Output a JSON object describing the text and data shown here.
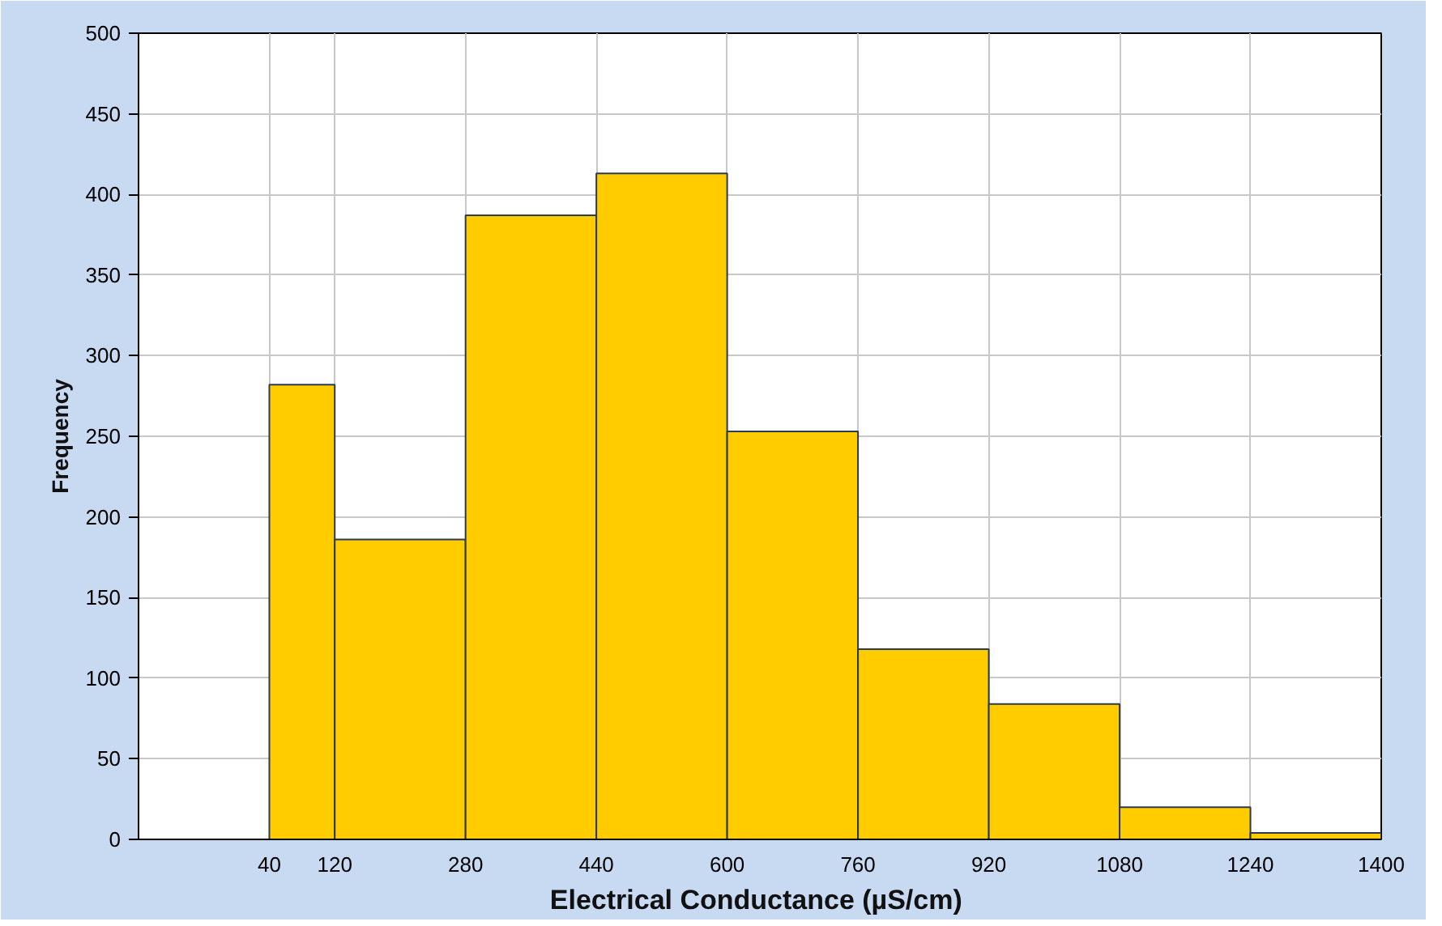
{
  "chart_data": {
    "type": "histogram",
    "xlabel": "Electrical Conductance  (µS/cm)",
    "ylabel": "Frequency",
    "bins": [
      40,
      120,
      280,
      440,
      600,
      760,
      920,
      1080,
      1240,
      1400
    ],
    "values": [
      282,
      186,
      387,
      413,
      253,
      118,
      84,
      20,
      4
    ],
    "color": "#ffcc00",
    "xlim": [
      -120,
      1400
    ],
    "xticks": [
      40,
      120,
      280,
      440,
      600,
      760,
      920,
      1080,
      1240,
      1400
    ],
    "ylim": [
      0,
      500
    ],
    "yticks": [
      0,
      50,
      100,
      150,
      200,
      250,
      300,
      350,
      400,
      450,
      500
    ],
    "grid": true
  }
}
